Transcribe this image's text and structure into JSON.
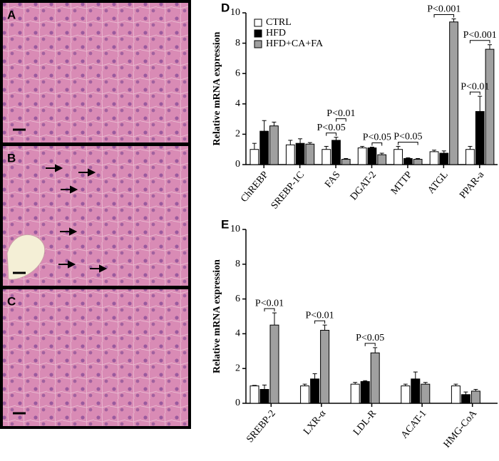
{
  "panels": [
    "A",
    "B",
    "C"
  ],
  "chart_data": [
    {
      "type": "bar",
      "panel": "D",
      "ylabel": "Relative mRNA expression",
      "categories": [
        "ChREBP",
        "SREBP-1C",
        "FAS",
        "DGAT-2",
        "MTTP",
        "ATGL",
        "PPAR-a"
      ],
      "ylim": [
        0,
        10
      ],
      "yticks": [
        0,
        2,
        4,
        6,
        8,
        10
      ],
      "legend": "upper left",
      "series": [
        {
          "name": "CTRL",
          "color": "#ffffff",
          "values": [
            1.0,
            1.3,
            1.0,
            1.1,
            1.0,
            0.85,
            1.0
          ],
          "errors": [
            0.4,
            0.3,
            0.2,
            0.1,
            0.2,
            0.1,
            0.2
          ]
        },
        {
          "name": "HFD",
          "color": "#000000",
          "values": [
            2.2,
            1.4,
            1.6,
            1.1,
            0.4,
            0.75,
            3.5
          ],
          "errors": [
            0.7,
            0.3,
            0.2,
            0.05,
            0.05,
            0.15,
            1.0
          ]
        },
        {
          "name": "HFD+CA+FA",
          "color": "#a0a0a0",
          "values": [
            2.55,
            1.35,
            0.35,
            0.65,
            0.35,
            9.4,
            7.6
          ],
          "errors": [
            0.25,
            0.1,
            0.05,
            0.1,
            0.05,
            0.2,
            0.3
          ]
        }
      ],
      "annotations": [
        {
          "text": "P<0.05",
          "category": 2,
          "from": 0,
          "to": 1
        },
        {
          "text": "P<0.01",
          "category": 2,
          "from": 1,
          "to": 2
        },
        {
          "text": "P<0.05",
          "category": 3,
          "from": 1,
          "to": 2
        },
        {
          "text": "P<0.05",
          "category": 4,
          "from": 0,
          "to": 2
        },
        {
          "text": "P<0.001",
          "category": 5,
          "from": 0,
          "to": 2
        },
        {
          "text": "P<0.01",
          "category": 6,
          "from": 0,
          "to": 1
        },
        {
          "text": "P<0.001",
          "category": 6,
          "from": 0,
          "to": 2
        }
      ]
    },
    {
      "type": "bar",
      "panel": "E",
      "ylabel": "Relative mRNA expression",
      "categories": [
        "SREBP-2",
        "LXR-α",
        "LDL-R",
        "ACAT-1",
        "HMG-CoA"
      ],
      "ylim": [
        0,
        10
      ],
      "yticks": [
        0,
        2,
        4,
        6,
        8,
        10
      ],
      "series": [
        {
          "color": "#ffffff",
          "values": [
            1.0,
            1.0,
            1.1,
            1.0,
            1.0
          ],
          "errors": [
            0.03,
            0.1,
            0.1,
            0.1,
            0.1
          ]
        },
        {
          "color": "#000000",
          "values": [
            0.8,
            1.4,
            1.25,
            1.4,
            0.5
          ],
          "errors": [
            0.25,
            0.3,
            0.05,
            0.4,
            0.15
          ]
        },
        {
          "color": "#a0a0a0",
          "values": [
            4.5,
            4.2,
            2.9,
            1.1,
            0.7
          ],
          "errors": [
            0.7,
            0.3,
            0.3,
            0.1,
            0.1
          ]
        }
      ],
      "annotations": [
        {
          "text": "P<0.01",
          "category": 0,
          "from": 1,
          "to": 2
        },
        {
          "text": "P<0.01",
          "category": 1,
          "from": 1,
          "to": 2
        },
        {
          "text": "P<0.05",
          "category": 2,
          "from": 1,
          "to": 2
        }
      ]
    }
  ]
}
